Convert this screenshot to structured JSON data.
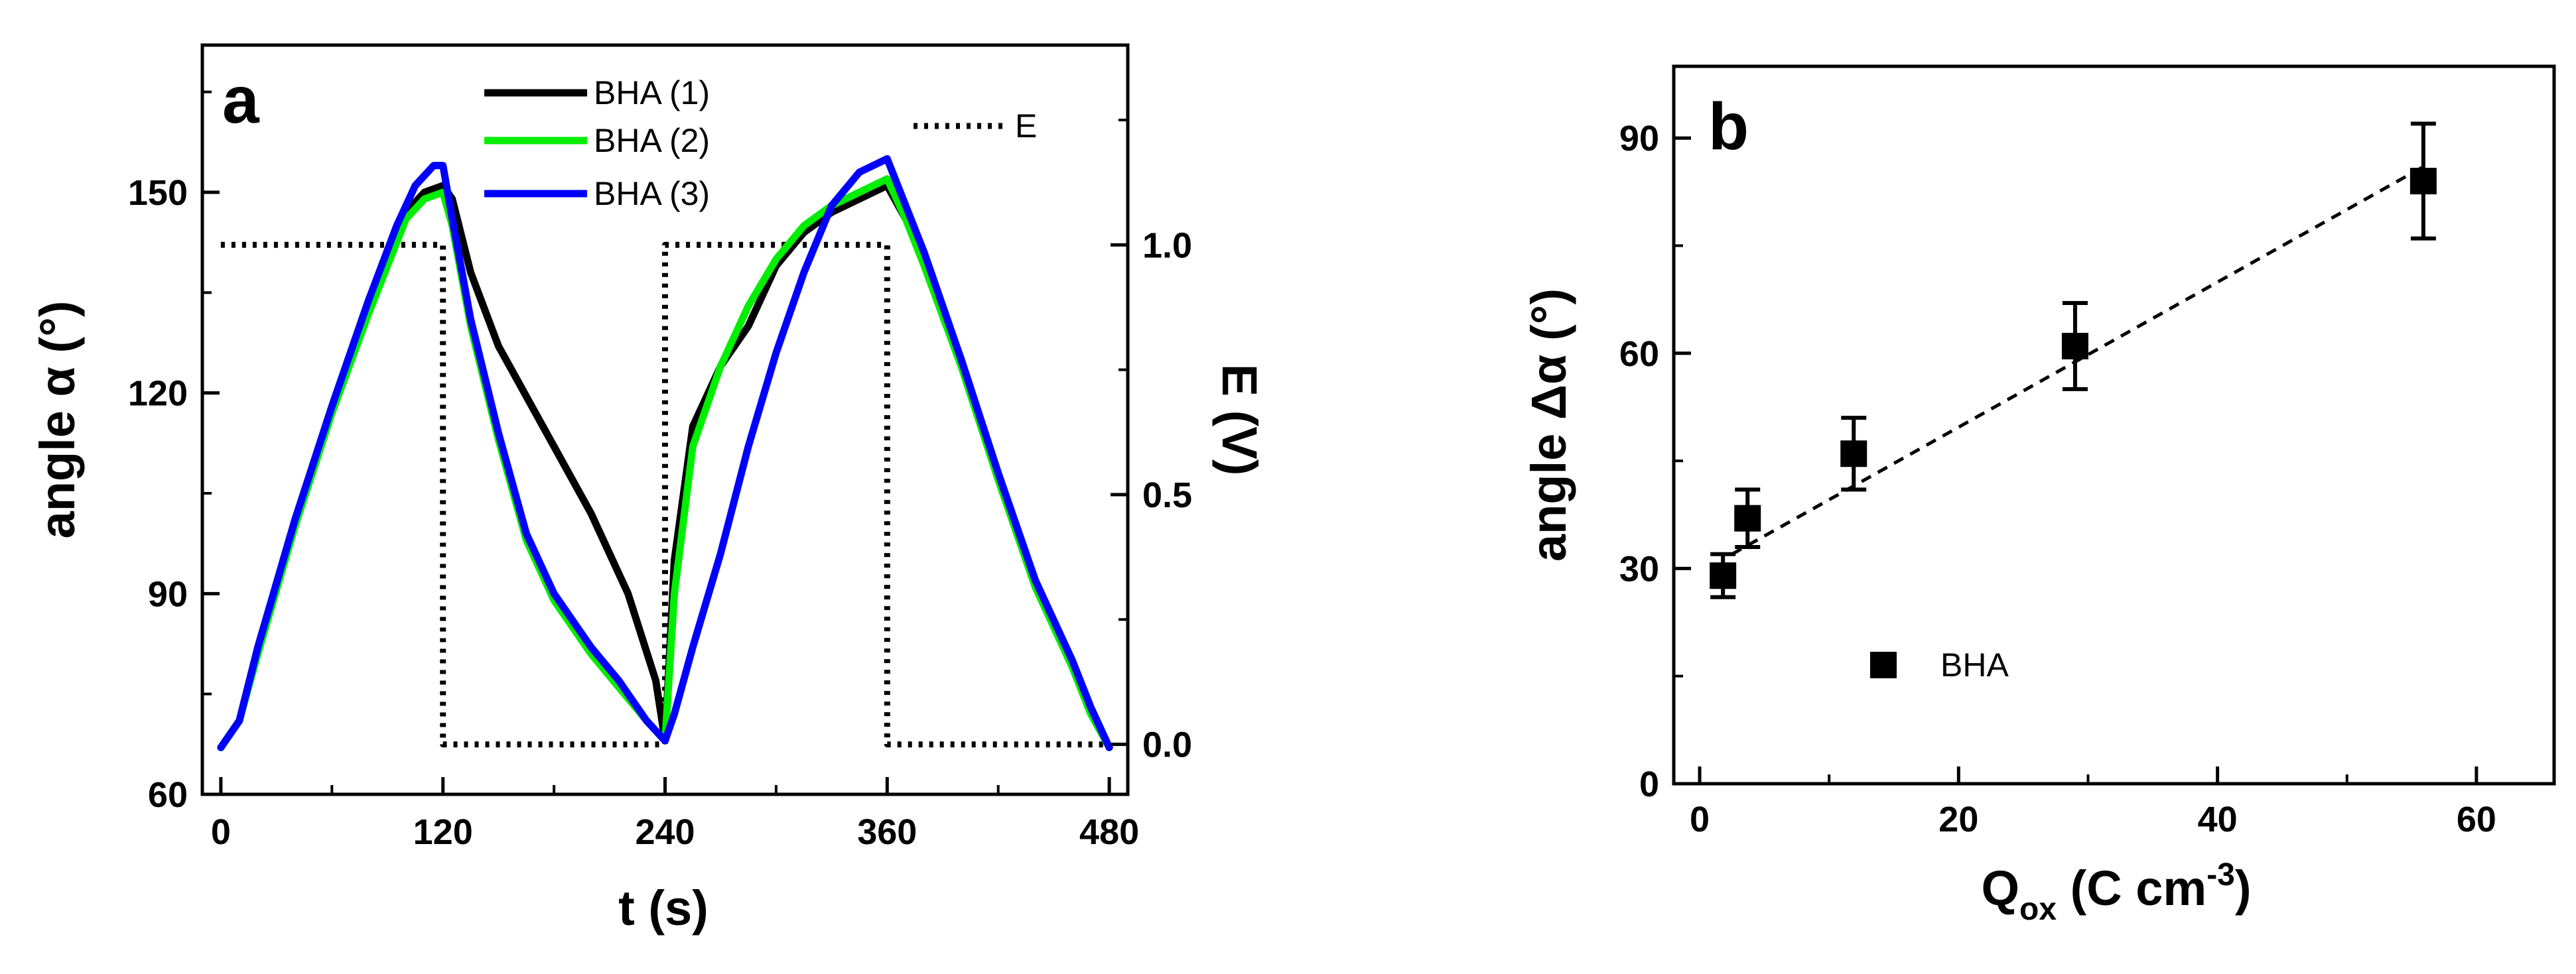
{
  "chart_data": [
    {
      "panel": "a",
      "type": "line",
      "xlabel": "t (s)",
      "ylabel": "angle α (°)",
      "y2label": "E (V)",
      "xlim": [
        -10,
        490
      ],
      "ylim": [
        60,
        172
      ],
      "y2lim": [
        -0.1,
        1.4
      ],
      "xticks": [
        0,
        120,
        240,
        360,
        480
      ],
      "yticks": [
        60,
        90,
        120,
        150
      ],
      "y2ticks": [
        "0.0",
        "0.5",
        "1.0"
      ],
      "series": [
        {
          "name": "BHA (1)",
          "color": "#000000",
          "style": "solid",
          "x": [
            0,
            10,
            20,
            40,
            60,
            80,
            100,
            110,
            120,
            125,
            135,
            150,
            170,
            200,
            220,
            235,
            240,
            245,
            255,
            270,
            285,
            300,
            315,
            330,
            345,
            360,
            370,
            380,
            400,
            420,
            440,
            460,
            470,
            480
          ],
          "y": [
            67,
            71,
            82,
            101,
            118,
            134,
            147,
            150,
            151,
            149,
            138,
            127,
            117,
            102,
            90,
            77,
            68,
            95,
            115,
            124,
            130,
            139,
            144,
            147,
            149,
            151,
            146,
            140,
            125,
            108,
            92,
            80,
            73,
            67
          ]
        },
        {
          "name": "BHA (2)",
          "color": "#00ee00",
          "style": "solid",
          "x": [
            0,
            10,
            20,
            40,
            60,
            80,
            100,
            110,
            120,
            125,
            135,
            150,
            165,
            180,
            200,
            215,
            230,
            240,
            245,
            255,
            270,
            285,
            300,
            315,
            330,
            345,
            360,
            370,
            380,
            400,
            420,
            440,
            460,
            470,
            480
          ],
          "y": [
            67,
            71,
            81,
            100,
            117,
            132,
            146,
            149,
            150,
            145,
            130,
            113,
            98,
            89,
            81,
            76,
            71,
            68,
            90,
            112,
            124,
            133,
            140,
            145,
            148,
            150,
            152,
            146,
            139,
            124,
            107,
            91,
            79,
            72,
            67
          ]
        },
        {
          "name": "BHA (3)",
          "color": "#0000ff",
          "style": "solid",
          "x": [
            0,
            10,
            20,
            40,
            60,
            80,
            95,
            105,
            115,
            120,
            125,
            135,
            150,
            165,
            180,
            200,
            215,
            230,
            240,
            245,
            255,
            270,
            285,
            300,
            315,
            330,
            345,
            360,
            370,
            380,
            400,
            420,
            440,
            460,
            470,
            480
          ],
          "y": [
            67,
            71,
            82,
            101,
            118,
            134,
            145,
            151,
            154,
            154,
            146,
            131,
            114,
            99,
            90,
            82,
            77,
            71,
            68,
            72,
            82,
            96,
            112,
            126,
            138,
            148,
            153,
            155,
            148,
            141,
            125,
            108,
            92,
            80,
            73,
            67
          ]
        },
        {
          "name": "E",
          "color": "#000000",
          "style": "dotted",
          "axis": "right",
          "x": [
            0,
            120,
            120,
            240,
            240,
            360,
            360,
            480
          ],
          "y": [
            1.0,
            1.0,
            0.0,
            0.0,
            1.0,
            1.0,
            0.0,
            0.0
          ]
        }
      ]
    },
    {
      "panel": "b",
      "type": "scatter",
      "xlabel_main": "Q",
      "xlabel_sub": "ox",
      "xlabel_unit": " (C cm",
      "xlabel_sup": "-3",
      "xlabel_close": ")",
      "ylabel": "angle Δα (°)",
      "xlim": [
        -2,
        66
      ],
      "ylim": [
        0,
        100
      ],
      "xticks": [
        0,
        20,
        40,
        60
      ],
      "yticks": [
        0,
        30,
        60,
        90
      ],
      "series": [
        {
          "name": "BHA",
          "marker": "square",
          "color": "#000000",
          "x": [
            1.8,
            3.7,
            11.9,
            29.0,
            55.9
          ],
          "y": [
            29,
            37,
            46,
            61,
            84
          ],
          "yerr": [
            3,
            4,
            5,
            6,
            8
          ]
        }
      ],
      "fit": {
        "style": "dashed",
        "x": [
          2.5,
          55.9
        ],
        "y": [
          32,
          86
        ]
      }
    }
  ]
}
